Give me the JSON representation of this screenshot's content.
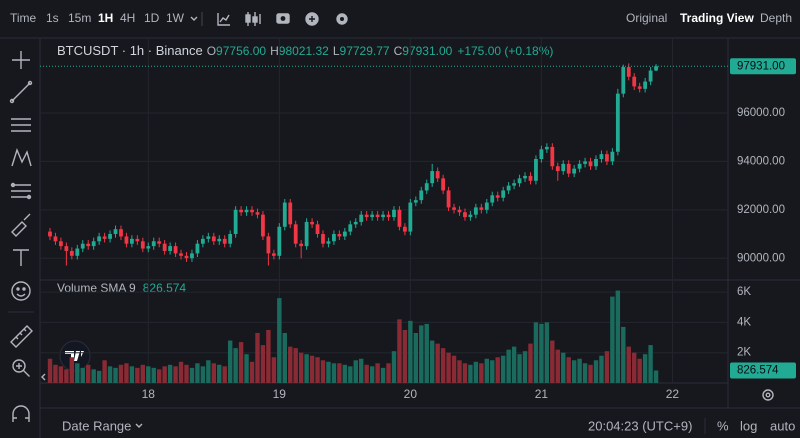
{
  "toolbar": {
    "intervals": [
      "Time",
      "1s",
      "15m",
      "1H",
      "4H",
      "1D",
      "1W"
    ],
    "active_interval": 3,
    "views": [
      "Original",
      "Trading View",
      "Depth"
    ],
    "active_view": 1
  },
  "footer": {
    "date_range": "Date Range",
    "clock": "20:04:23 (UTC+9)",
    "options": [
      "%",
      "log",
      "auto"
    ]
  },
  "chart_data": {
    "type": "candlestick",
    "legend": {
      "symbol": "BTCUSDT · 1h · Binance",
      "fields": [
        {
          "label": "O",
          "value": "97756.00"
        },
        {
          "label": "H",
          "value": "98021.32"
        },
        {
          "label": "L",
          "value": "97729.77"
        },
        {
          "label": "C",
          "value": "97931.00"
        }
      ],
      "change": "+175.00 (+0.18%)"
    },
    "categories": [
      null,
      null,
      null,
      null,
      null,
      null,
      null,
      null,
      null,
      null,
      null,
      null,
      null,
      null,
      null,
      null,
      null,
      null,
      "18",
      null,
      null,
      null,
      null,
      null,
      null,
      null,
      null,
      null,
      null,
      null,
      null,
      null,
      null,
      null,
      null,
      null,
      null,
      null,
      null,
      null,
      null,
      null,
      "19",
      null,
      null,
      null,
      null,
      null,
      null,
      null,
      null,
      null,
      null,
      null,
      null,
      null,
      null,
      null,
      null,
      null,
      null,
      null,
      null,
      null,
      null,
      null,
      "20",
      null,
      null,
      null,
      null,
      null,
      null,
      null,
      null,
      null,
      null,
      null,
      null,
      null,
      null,
      null,
      null,
      null,
      null,
      null,
      null,
      null,
      null,
      null,
      "21",
      null,
      null,
      null,
      null,
      null,
      null,
      null,
      null,
      null,
      null,
      null,
      null,
      null,
      null,
      null,
      null,
      null,
      null,
      null,
      null,
      null,
      null,
      null,
      "22"
    ],
    "open": [
      91100,
      90900,
      90700,
      90500,
      90300,
      90100,
      90400,
      90600,
      90500,
      90700,
      90900,
      90800,
      91000,
      91200,
      90900,
      90600,
      90800,
      90700,
      90400,
      90500,
      90700,
      90600,
      90300,
      90500,
      90200,
      90100,
      90000,
      90200,
      90600,
      90800,
      90900,
      90700,
      90800,
      90600,
      91000,
      92000,
      91900,
      92000,
      91900,
      91800,
      90900,
      90200,
      90100,
      91300,
      92300,
      91400,
      90600,
      90500,
      91500,
      91400,
      91000,
      90600,
      90700,
      91000,
      90900,
      91100,
      91400,
      91500,
      91800,
      91700,
      91800,
      91700,
      91800,
      91700,
      92000,
      91300,
      91100,
      92300,
      92400,
      92800,
      93100,
      93600,
      93300,
      92800,
      92100,
      92000,
      91900,
      91700,
      91800,
      92100,
      92000,
      92300,
      92600,
      92500,
      92800,
      93000,
      93100,
      93300,
      93400,
      93200,
      94100,
      94500,
      94600,
      93800,
      93600,
      93900,
      93500,
      93700,
      93900,
      94000,
      93800,
      94100,
      94300,
      94000,
      94400,
      96800,
      97900,
      97500,
      97100,
      97000,
      97300,
      97756,
      null,
      null,
      null
    ],
    "high": [
      91250,
      91050,
      90850,
      90650,
      90450,
      90550,
      90750,
      90750,
      90850,
      91050,
      91050,
      91150,
      91350,
      91350,
      91050,
      90950,
      90950,
      90850,
      90650,
      90850,
      90850,
      90750,
      90650,
      90650,
      90350,
      90250,
      90350,
      90750,
      90950,
      91050,
      91050,
      90950,
      90950,
      91150,
      92150,
      92150,
      92150,
      92150,
      92050,
      91950,
      91050,
      90350,
      91450,
      92450,
      92450,
      91550,
      90750,
      91650,
      91650,
      91550,
      91150,
      90850,
      91150,
      91150,
      91250,
      91550,
      91650,
      91950,
      91950,
      91950,
      91950,
      91950,
      91950,
      92150,
      92150,
      91450,
      92450,
      92550,
      92950,
      93250,
      93900,
      93750,
      93450,
      92950,
      92250,
      92150,
      92050,
      91950,
      92250,
      92250,
      92450,
      92750,
      92750,
      92950,
      93150,
      93250,
      93450,
      93550,
      93550,
      94250,
      94650,
      94750,
      94750,
      93950,
      94050,
      94050,
      93850,
      94050,
      94150,
      94150,
      94250,
      94450,
      94450,
      94550,
      97000,
      98000,
      98050,
      97650,
      97250,
      97450,
      97900,
      98021.32,
      null,
      null,
      null
    ],
    "low": [
      90750,
      90550,
      90350,
      89700,
      89950,
      89950,
      90250,
      90350,
      90350,
      90550,
      90650,
      90650,
      90850,
      90750,
      90450,
      90450,
      90550,
      90250,
      90250,
      90350,
      90450,
      90150,
      90150,
      90050,
      89950,
      89850,
      89850,
      90050,
      90450,
      90650,
      90550,
      90550,
      90450,
      90450,
      90850,
      91750,
      91750,
      91750,
      91650,
      90750,
      89700,
      89950,
      89950,
      91150,
      91250,
      90450,
      90000,
      90350,
      91250,
      90850,
      90450,
      90450,
      90550,
      90750,
      90750,
      90950,
      91250,
      91350,
      91550,
      91550,
      91550,
      91550,
      91550,
      91550,
      91150,
      90950,
      90950,
      92150,
      92250,
      92650,
      92950,
      93150,
      92650,
      91950,
      91850,
      91750,
      91550,
      91550,
      91650,
      91850,
      91850,
      92150,
      92350,
      92350,
      92650,
      92850,
      92950,
      93150,
      93050,
      93050,
      93950,
      94350,
      93650,
      93200,
      93450,
      93350,
      93350,
      93550,
      93750,
      93650,
      93650,
      93950,
      93850,
      93850,
      94250,
      96650,
      97350,
      96950,
      96850,
      96850,
      97150,
      97729.77,
      null,
      null,
      null
    ],
    "close": [
      90900,
      90700,
      90500,
      90300,
      90100,
      90400,
      90600,
      90500,
      90700,
      90900,
      90800,
      91000,
      91200,
      90900,
      90600,
      90800,
      90700,
      90400,
      90500,
      90700,
      90600,
      90300,
      90500,
      90200,
      90100,
      90000,
      90200,
      90600,
      90800,
      90900,
      90700,
      90800,
      90600,
      91000,
      92000,
      91900,
      92000,
      91900,
      91800,
      90900,
      90200,
      90100,
      91300,
      92300,
      91400,
      90600,
      90500,
      91500,
      91400,
      91000,
      90600,
      90700,
      91000,
      90900,
      91100,
      91400,
      91500,
      91800,
      91700,
      91800,
      91700,
      91800,
      91700,
      92000,
      91300,
      91100,
      92300,
      92400,
      92800,
      93100,
      93600,
      93300,
      92800,
      92100,
      92000,
      91900,
      91700,
      91800,
      92100,
      92000,
      92300,
      92600,
      92500,
      92800,
      93000,
      93100,
      93300,
      93400,
      93200,
      94100,
      94500,
      94600,
      93800,
      93600,
      93900,
      93500,
      93700,
      93900,
      94000,
      93800,
      94100,
      94300,
      94000,
      94400,
      96800,
      97900,
      97500,
      97100,
      97000,
      97300,
      97756,
      97931,
      null,
      null,
      null
    ],
    "up_color": "#22ab94",
    "down_color": "#f23645",
    "ylim": [
      89100,
      99100
    ],
    "yticks": [
      {
        "value": 90000,
        "label": "90000.00"
      },
      {
        "value": 92000,
        "label": "92000.00"
      },
      {
        "value": 94000,
        "label": "94000.00"
      },
      {
        "value": 96000,
        "label": "96000.00"
      }
    ],
    "last_price_label": "97931.00",
    "grid": true,
    "volume": {
      "title": "Volume SMA 9",
      "sma_label": "826.574",
      "values": [
        1600,
        1200,
        1100,
        900,
        1700,
        1300,
        1000,
        1200,
        900,
        800,
        1500,
        1100,
        1000,
        1200,
        1300,
        1100,
        1000,
        1200,
        1100,
        1000,
        900,
        1100,
        1200,
        1100,
        1400,
        1200,
        1000,
        1300,
        1100,
        1500,
        1300,
        1200,
        1100,
        2800,
        2300,
        2700,
        1900,
        1400,
        3300,
        2500,
        3500,
        1700,
        5600,
        3300,
        2400,
        2300,
        2000,
        1900,
        1800,
        1700,
        1500,
        1400,
        1300,
        1300,
        1200,
        1100,
        1500,
        1600,
        1200,
        1100,
        1300,
        1000,
        1300,
        2100,
        4200,
        3500,
        4100,
        3300,
        3800,
        3900,
        2800,
        2600,
        2300,
        2000,
        1800,
        1500,
        1300,
        1200,
        1400,
        1300,
        1600,
        1500,
        1700,
        1800,
        2200,
        2400,
        1900,
        2100,
        2600,
        4000,
        3900,
        4000,
        2800,
        2200,
        2000,
        1700,
        1500,
        1600,
        1300,
        1200,
        1500,
        1800,
        2100,
        5700,
        6100,
        3700,
        2400,
        2000,
        1600,
        1900,
        2500,
        826.574,
        null,
        null,
        null
      ],
      "last_label": "826.574",
      "up_color": "#1a6b5e",
      "down_color": "#8a2a34",
      "ylim": [
        0,
        6400
      ],
      "yticks": [
        {
          "value": 2000,
          "label": "2K"
        },
        {
          "value": 4000,
          "label": "4K"
        },
        {
          "value": 6000,
          "label": "6K"
        }
      ]
    }
  }
}
